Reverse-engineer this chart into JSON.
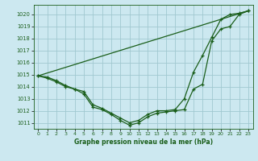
{
  "title": "Graphe pression niveau de la mer (hPa)",
  "background_color": "#cce8f0",
  "grid_color": "#a0c8d0",
  "line_color": "#1a5e1a",
  "xlim": [
    -0.5,
    23.5
  ],
  "ylim": [
    1010.5,
    1020.8
  ],
  "yticks": [
    1011,
    1012,
    1013,
    1014,
    1015,
    1016,
    1017,
    1018,
    1019,
    1020
  ],
  "xticks": [
    0,
    1,
    2,
    3,
    4,
    5,
    6,
    7,
    8,
    9,
    10,
    11,
    12,
    13,
    14,
    15,
    16,
    17,
    18,
    19,
    20,
    21,
    22,
    23
  ],
  "line1": {
    "x": [
      0,
      1,
      2,
      3,
      4,
      5,
      6,
      7,
      8,
      9,
      10,
      11,
      12,
      13,
      14,
      15,
      16,
      17,
      18,
      19,
      20,
      21,
      22,
      23
    ],
    "y": [
      1014.9,
      1014.8,
      1014.5,
      1014.1,
      1013.8,
      1013.4,
      1012.3,
      1012.1,
      1011.7,
      1011.2,
      1010.8,
      1011.0,
      1011.5,
      1011.8,
      1011.9,
      1012.0,
      1012.1,
      1013.8,
      1014.2,
      1017.8,
      1018.8,
      1019.0,
      1020.0,
      1020.3
    ]
  },
  "line2": {
    "x": [
      0,
      1,
      2,
      3,
      4,
      5,
      6,
      7,
      8,
      9,
      10,
      11,
      12,
      13,
      14,
      15,
      16,
      17,
      18,
      19,
      20,
      21,
      22,
      23
    ],
    "y": [
      1014.9,
      1014.7,
      1014.4,
      1014.0,
      1013.8,
      1013.6,
      1012.5,
      1012.2,
      1011.8,
      1011.4,
      1011.0,
      1011.2,
      1011.7,
      1012.0,
      1012.0,
      1012.1,
      1013.0,
      1015.2,
      1016.6,
      1018.1,
      1019.6,
      1020.0,
      1020.1,
      1020.3
    ]
  },
  "line3": {
    "x": [
      0,
      23
    ],
    "y": [
      1014.9,
      1020.3
    ]
  }
}
